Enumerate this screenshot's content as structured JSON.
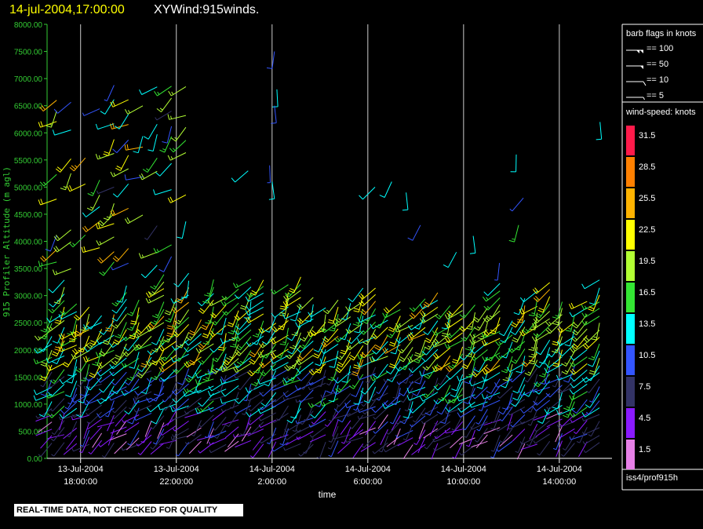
{
  "chart_data": {
    "type": "wind-barb",
    "title_time": "14-jul-2004,17:00:00",
    "title": "XYWind:915winds.",
    "ylabel": "915 Profiler Altitude (m agl)",
    "xlabel": "time",
    "y_ticks": [
      "0.00",
      "500.00",
      "1000.00",
      "1500.00",
      "2000.00",
      "2500.00",
      "3000.00",
      "3500.00",
      "4000.00",
      "4500.00",
      "5000.00",
      "5500.00",
      "6000.00",
      "6500.00",
      "7000.00",
      "7500.00",
      "8000.00"
    ],
    "ylim": [
      0,
      8000
    ],
    "xlim_hours_from_13jul_18z": [
      -1.4,
      22.2
    ],
    "x_ticks": [
      {
        "date": "13-Jul-2004",
        "time": "18:00:00",
        "hour": 0
      },
      {
        "date": "13-Jul-2004",
        "time": "22:00:00",
        "hour": 4
      },
      {
        "date": "14-Jul-2004",
        "time": "2:00:00",
        "hour": 8
      },
      {
        "date": "14-Jul-2004",
        "time": "6:00:00",
        "hour": 12
      },
      {
        "date": "14-Jul-2004",
        "time": "10:00:00",
        "hour": 16
      },
      {
        "date": "14-Jul-2004",
        "time": "14:00:00",
        "hour": 20
      }
    ],
    "barb_legend": {
      "title": "barb flags in knots",
      "entries": [
        "== 100",
        "== 50",
        "== 10",
        "== 5"
      ]
    },
    "speed_legend": {
      "title": "wind-speed: knots",
      "labels": [
        "31.5",
        "28.5",
        "25.5",
        "22.5",
        "19.5",
        "16.5",
        "13.5",
        "10.5",
        "7.5",
        "4.5",
        "1.5"
      ],
      "colors": [
        "#ff1a4a",
        "#ff8000",
        "#ffb300",
        "#ffff00",
        "#b2ff33",
        "#33e633",
        "#00ffff",
        "#3355ff",
        "#333366",
        "#8a1aff",
        "#e680e6"
      ]
    },
    "station": "iss4/prof915h",
    "notice": "REAL-TIME DATA, NOT CHECKED FOR QUALITY"
  }
}
